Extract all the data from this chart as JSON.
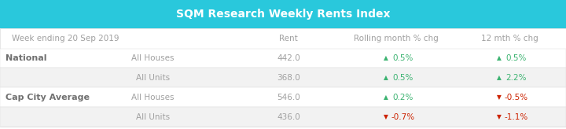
{
  "title": "SQM Research Weekly Rents Index",
  "title_bg": "#29C8DC",
  "title_color": "#FFFFFF",
  "header_color": "#A0A0A0",
  "header_label": "Week ending 20 Sep 2019",
  "col_headers": [
    "Rent",
    "Rolling month % chg",
    "12 mth % chg"
  ],
  "border_color": "#DDDDDD",
  "rows": [
    {
      "group": "National",
      "sub": "All Houses",
      "rent": "442.0",
      "rolling": {
        "symbol": "▲",
        "value": "0.5%",
        "up": true
      },
      "mth12": {
        "symbol": "▲",
        "value": "0.5%",
        "up": true
      }
    },
    {
      "group": "",
      "sub": "All Units",
      "rent": "368.0",
      "rolling": {
        "symbol": "▲",
        "value": "0.5%",
        "up": true
      },
      "mth12": {
        "symbol": "▲",
        "value": "2.2%",
        "up": true
      }
    },
    {
      "group": "Cap City Average",
      "sub": "All Houses",
      "rent": "546.0",
      "rolling": {
        "symbol": "▲",
        "value": "0.2%",
        "up": true
      },
      "mth12": {
        "symbol": "▼",
        "value": "-0.5%",
        "up": false
      }
    },
    {
      "group": "",
      "sub": "All Units",
      "rent": "436.0",
      "rolling": {
        "symbol": "▼",
        "value": "-0.7%",
        "up": false
      },
      "mth12": {
        "symbol": "▼",
        "value": "-1.1%",
        "up": false
      }
    }
  ],
  "up_color": "#3CB371",
  "down_color": "#CC2200",
  "text_color_group": "#707070",
  "text_color_sub": "#A0A0A0",
  "text_color_rent": "#A0A0A0",
  "figsize": [
    7.2,
    1.64
  ],
  "dpi": 100
}
